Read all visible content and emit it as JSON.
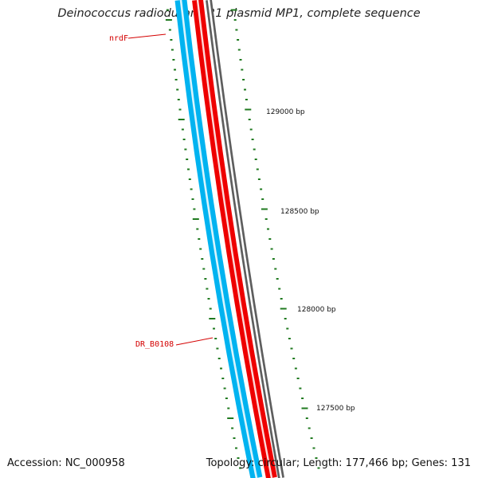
{
  "title": "Deinococcus radiodurans R1 plasmid MP1, complete sequence",
  "footer": {
    "accession": "Accession: NC_000958",
    "summary": "Topology: circular; Length: 177,466 bp; Genes: 131"
  },
  "scale_labels": [
    "129000 bp",
    "128500 bp",
    "128000 bp",
    "127500 bp"
  ],
  "genes": [
    "nrdF",
    "DR_B0108"
  ],
  "colors": {
    "forward_strand": "#00b3f0",
    "reverse_strand": "#ee0000",
    "backbone": "#777777",
    "ticks": "#1f7a1f",
    "gene_label": "#d40000"
  }
}
